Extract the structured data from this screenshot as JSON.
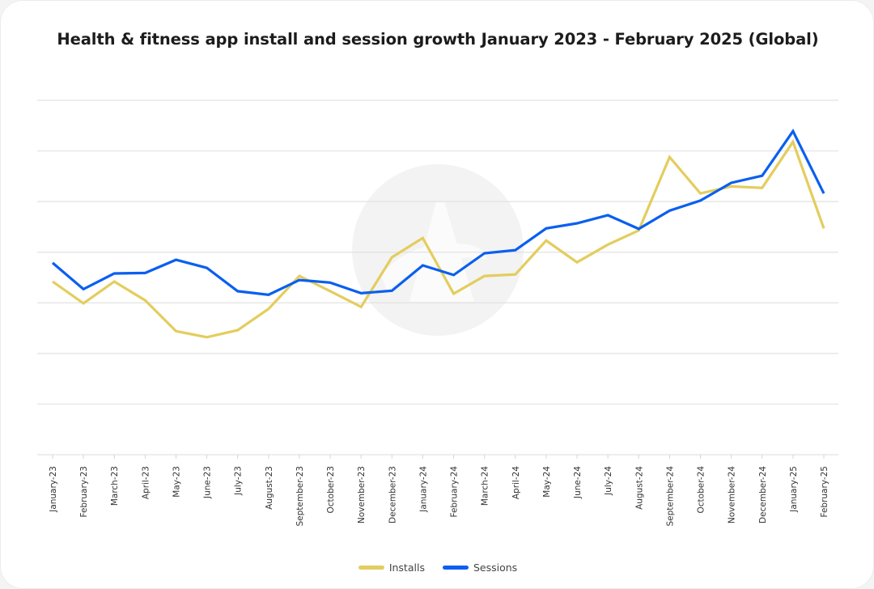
{
  "chart_data": {
    "type": "line",
    "title": "Health & fitness app install and session growth January 2023 - February 2025 (Global)",
    "xlabel": "",
    "ylabel": "",
    "y_axis_note": "No y-axis tick labels shown; values are relative index units estimated from gridlines (0 = bottom gridline, 7 = top gridline)",
    "ylim": [
      0,
      7
    ],
    "grid": true,
    "legend_position": "bottom-center",
    "categories": [
      "January-23",
      "February-23",
      "March-23",
      "April-23",
      "May-23",
      "June-23",
      "July-23",
      "August-23",
      "September-23",
      "October-23",
      "November-23",
      "December-23",
      "January-24",
      "February-24",
      "March-24",
      "April-24",
      "May-24",
      "June-24",
      "July-24",
      "August-24",
      "September-24",
      "October-24",
      "November-24",
      "December-24",
      "January-25",
      "February-25"
    ],
    "series": [
      {
        "name": "Installs",
        "color": "#e3cd5e",
        "values": [
          3.42,
          2.99,
          3.42,
          3.05,
          2.44,
          2.32,
          2.46,
          2.88,
          3.53,
          3.23,
          2.92,
          3.9,
          4.28,
          3.18,
          3.53,
          3.56,
          4.23,
          3.8,
          4.15,
          4.43,
          5.88,
          5.16,
          5.3,
          5.27,
          6.18,
          4.47
        ]
      },
      {
        "name": "Sessions",
        "color": "#0a5ff0",
        "values": [
          3.79,
          3.27,
          3.58,
          3.59,
          3.85,
          3.69,
          3.23,
          3.16,
          3.45,
          3.4,
          3.19,
          3.24,
          3.74,
          3.55,
          3.98,
          4.04,
          4.47,
          4.57,
          4.73,
          4.46,
          4.82,
          5.02,
          5.37,
          5.51,
          6.39,
          5.16
        ]
      }
    ]
  },
  "legend": {
    "installs_label": "Installs",
    "sessions_label": "Sessions"
  }
}
